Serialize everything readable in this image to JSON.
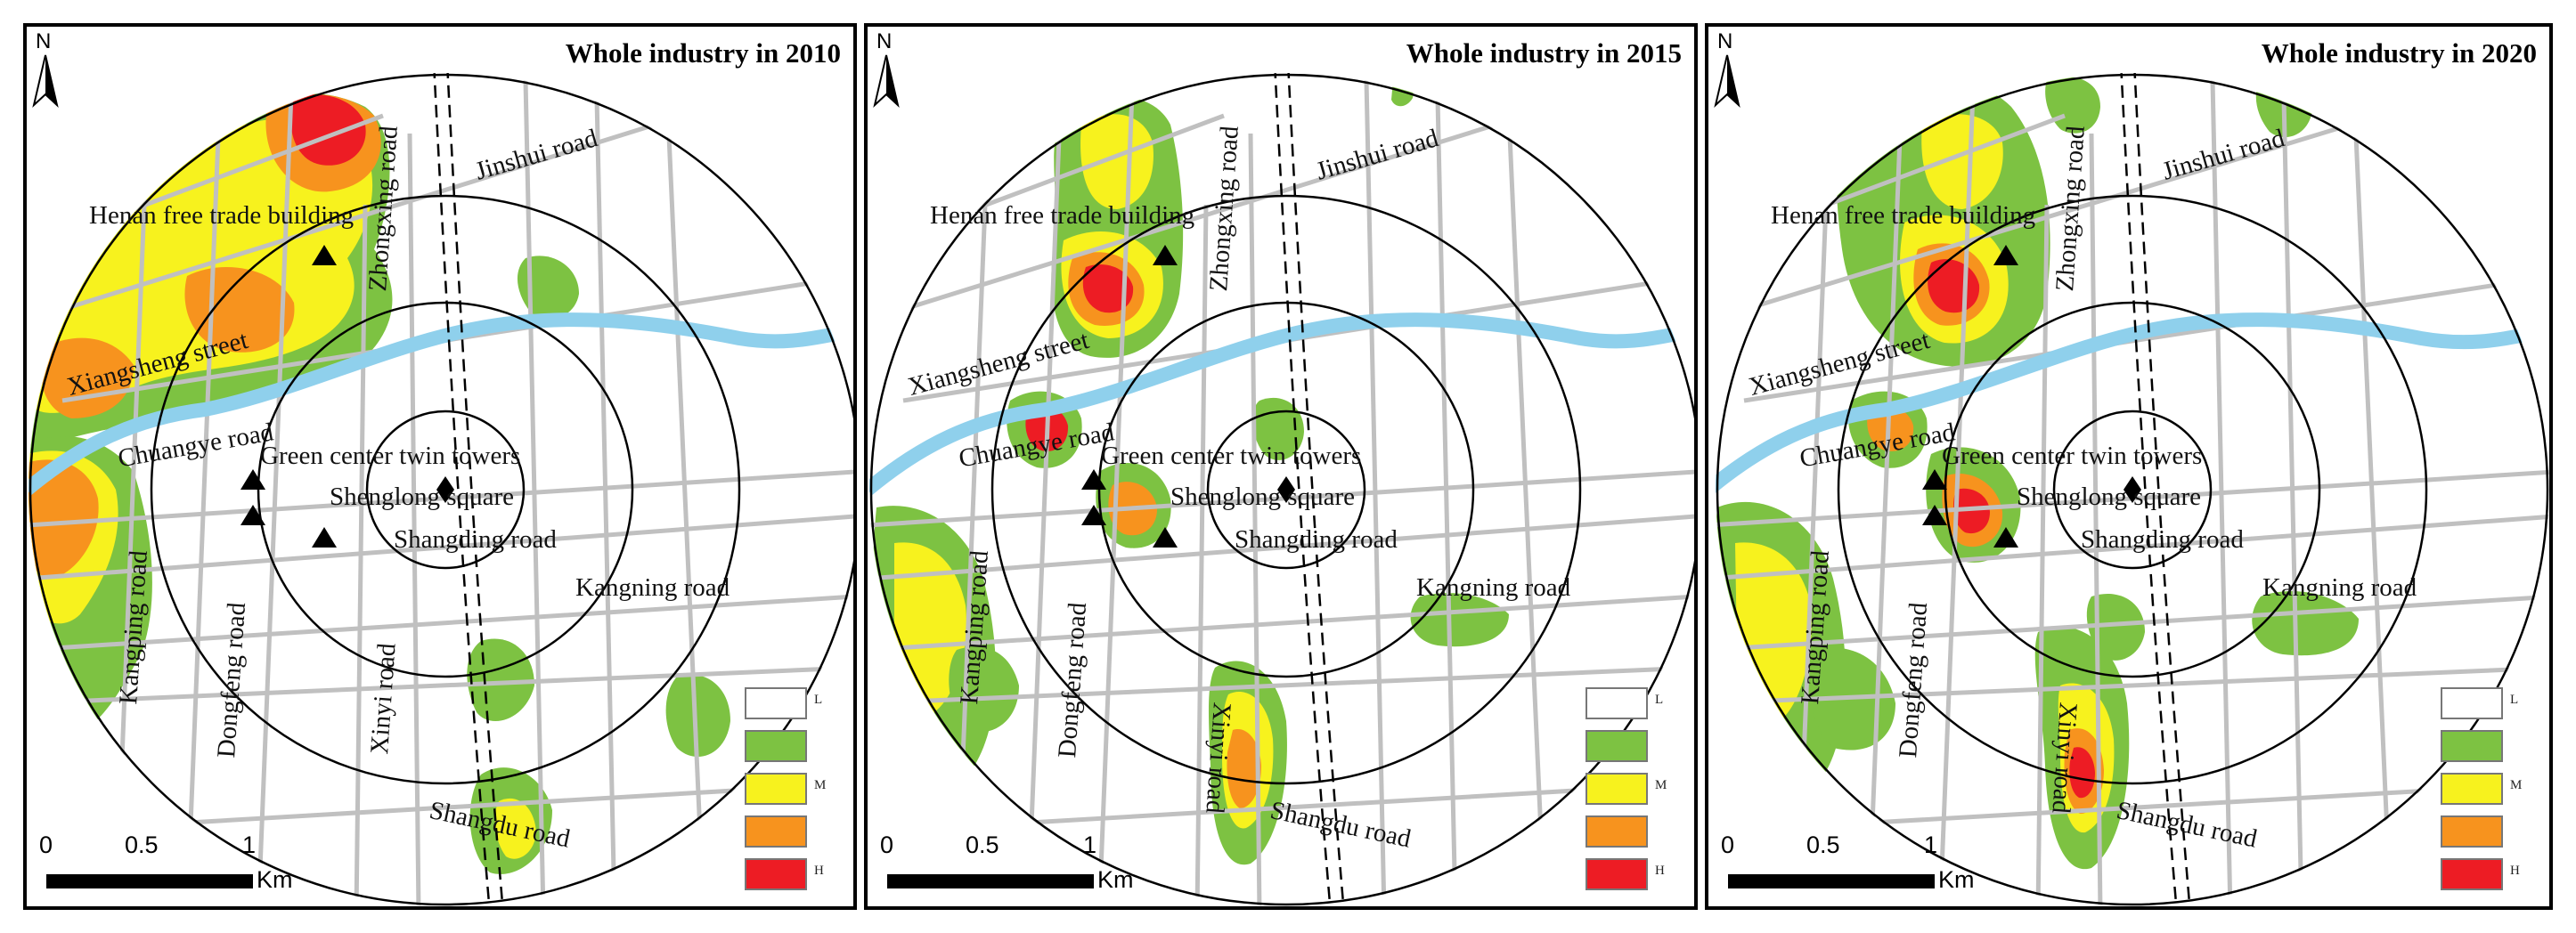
{
  "legend": {
    "classes": [
      {
        "label": "L",
        "color": "#ffffff"
      },
      {
        "label": "",
        "color": "#7dc242"
      },
      {
        "label": "M",
        "color": "#f7f21e"
      },
      {
        "label": "",
        "color": "#f7931e"
      },
      {
        "label": "H",
        "color": "#ed1c24"
      }
    ]
  },
  "scale": {
    "ticks": [
      "0",
      "0.5",
      "1"
    ],
    "unit": "Km"
  },
  "north_label": "N",
  "colors": {
    "river": "#8fd0ec",
    "road": "#c0c0c0",
    "ring": "#000000",
    "railway": "#000000"
  },
  "panels": [
    {
      "title": "Whole industry in 2010",
      "roads": {
        "jinshui": "Jinshui road",
        "zhongxing": "Zhongxing road",
        "henan": "Henan free trade building",
        "xiangsheng": "Xiangsheng street",
        "chuangye": "Chuangye road",
        "green": "Green center twin towers",
        "shenglong": "Shenglong square",
        "shangding": "Shangding road",
        "kangning": "Kangning road",
        "kangping": "Kangping road",
        "dongfeng": "Dongfeng road",
        "xinyi": "Xinyi road",
        "shangdu": "Shangdu road"
      }
    },
    {
      "title": "Whole industry in 2015",
      "roads": {
        "jinshui": "Jinshui road",
        "zhongxing": "Zhongxing road",
        "henan": "Henan free trade building",
        "xiangsheng": "Xiangsheng street",
        "chuangye": "Chuangye road",
        "green": "Green center twin towers",
        "shenglong": "Shenglong square",
        "shangding": "Shangding road",
        "kangning": "Kangning road",
        "kangping": "Kangping road",
        "dongfeng": "Dongfeng road",
        "xinyi": "Xinyi road",
        "shangdu": "Shangdu road"
      }
    },
    {
      "title": "Whole industry in 2020",
      "roads": {
        "jinshui": "Jinshui road",
        "zhongxing": "Zhongxing road",
        "henan": "Henan free trade building",
        "xiangsheng": "Xiangsheng street",
        "chuangye": "Chuangye road",
        "green": "Green center twin towers",
        "shenglong": "Shenglong square",
        "shangding": "Shangding road",
        "kangning": "Kangning road",
        "kangping": "Kangping road",
        "dongfeng": "Dongfeng road",
        "xinyi": "Xinyi road",
        "shangdu": "Shangdu road"
      }
    }
  ]
}
